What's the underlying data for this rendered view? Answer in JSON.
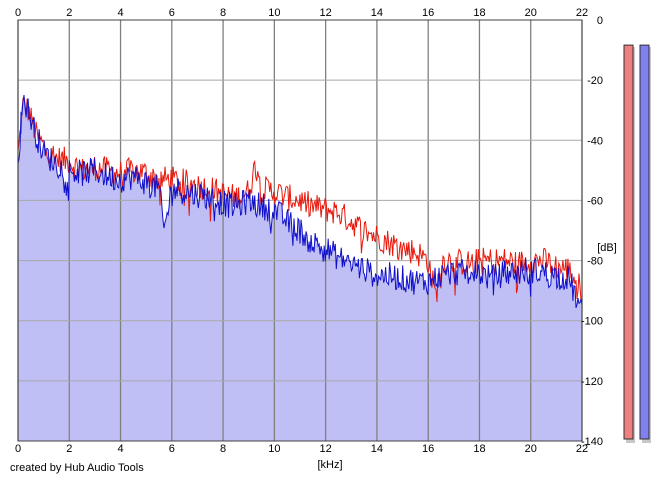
{
  "chart_data": {
    "type": "area",
    "xlabel": "[kHz]",
    "ylabel": "[dB]",
    "xlim": [
      0,
      22
    ],
    "ylim": [
      -140,
      0
    ],
    "xticks": [
      0,
      2,
      4,
      6,
      8,
      10,
      12,
      14,
      16,
      18,
      20,
      22
    ],
    "yticks": [
      0,
      -20,
      -40,
      -60,
      -80,
      -100,
      -120,
      -140
    ],
    "grid": true,
    "colors": {
      "red": "#e8180c",
      "blue": "#1010cc",
      "fill": "#bfbff5"
    },
    "series": [
      {
        "color": "#e8180c",
        "x": [
          0.0,
          0.2,
          0.4,
          0.7,
          1.0,
          1.5,
          2.0,
          2.5,
          3.0,
          3.5,
          4.0,
          4.5,
          5.0,
          5.5,
          6.0,
          6.5,
          7.0,
          7.5,
          8.0,
          8.5,
          9.0,
          9.3,
          9.5,
          10.0,
          10.5,
          11.0,
          11.5,
          12.0,
          12.5,
          13.0,
          13.5,
          14.0,
          14.5,
          15.0,
          15.5,
          16.0,
          16.3,
          16.5,
          17.0,
          17.5,
          18.0,
          18.5,
          19.0,
          19.5,
          20.0,
          20.5,
          21.0,
          21.5,
          22.0
        ],
        "values": [
          -45,
          -28,
          -30,
          -38,
          -42,
          -46,
          -47,
          -50,
          -49,
          -50,
          -51,
          -50,
          -51,
          -53,
          -53,
          -54,
          -55,
          -56,
          -58,
          -59,
          -57,
          -47,
          -56,
          -57,
          -59,
          -60,
          -62,
          -63,
          -64,
          -67,
          -70,
          -72,
          -74,
          -76,
          -77,
          -80,
          -92,
          -80,
          -80,
          -81,
          -80,
          -80,
          -80,
          -81,
          -80,
          -80,
          -82,
          -83,
          -90
        ]
      },
      {
        "color": "#1010cc",
        "x": [
          0.0,
          0.2,
          0.4,
          0.7,
          1.0,
          1.5,
          2.0,
          2.5,
          3.0,
          3.5,
          4.0,
          4.5,
          5.0,
          5.5,
          5.7,
          6.0,
          6.5,
          7.0,
          7.5,
          8.0,
          8.5,
          9.0,
          9.5,
          10.0,
          10.5,
          11.0,
          11.5,
          12.0,
          12.5,
          13.0,
          13.5,
          14.0,
          14.5,
          15.0,
          15.5,
          16.0,
          16.5,
          17.0,
          17.5,
          18.0,
          18.5,
          19.0,
          19.5,
          20.0,
          20.5,
          21.0,
          21.5,
          22.0
        ],
        "values": [
          -47,
          -26,
          -30,
          -38,
          -44,
          -48,
          -50,
          -51,
          -50,
          -52,
          -53,
          -52,
          -54,
          -56,
          -70,
          -56,
          -57,
          -58,
          -59,
          -61,
          -62,
          -60,
          -62,
          -63,
          -67,
          -70,
          -74,
          -76,
          -79,
          -81,
          -83,
          -85,
          -85,
          -86,
          -87,
          -87,
          -85,
          -84,
          -84,
          -84,
          -86,
          -84,
          -84,
          -83,
          -84,
          -85,
          -86,
          -98
        ]
      }
    ],
    "level_meters": [
      {
        "color": "#f08080",
        "level": 0.975
      },
      {
        "color": "#8080f0",
        "level": 0.975
      }
    ]
  },
  "footer": {
    "credit": "created by Hub Audio Tools"
  }
}
